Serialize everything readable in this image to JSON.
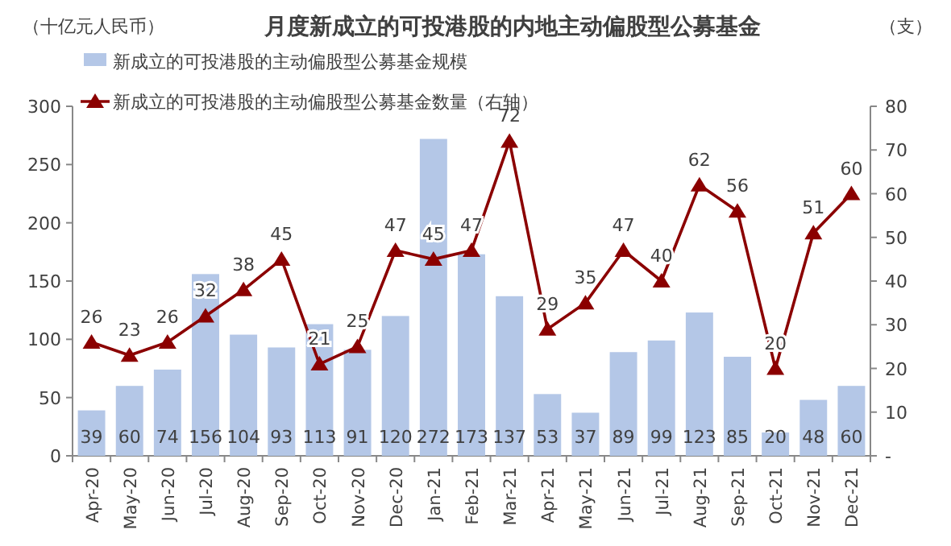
{
  "chart_data": {
    "type": "bar",
    "title": "月度新成立的可投港股的内地主动偏股型公募基金",
    "ylabel": "（十亿元人民币）",
    "y2label": "（支）",
    "categories": [
      "Apr-20",
      "May-20",
      "Jun-20",
      "Jul-20",
      "Aug-20",
      "Sep-20",
      "Oct-20",
      "Nov-20",
      "Dec-20",
      "Jan-21",
      "Feb-21",
      "Mar-21",
      "Apr-21",
      "May-21",
      "Jun-21",
      "Jul-21",
      "Aug-21",
      "Sep-21",
      "Oct-21",
      "Nov-21",
      "Dec-21"
    ],
    "series": [
      {
        "name": "新成立的可投港股的主动偏股型公募基金规模",
        "color": "#b4c7e7",
        "values": [
          39,
          60,
          74,
          156,
          104,
          93,
          113,
          91,
          120,
          272,
          173,
          137,
          53,
          37,
          89,
          99,
          123,
          85,
          20,
          48,
          60
        ]
      },
      {
        "name": "新成立的可投港股的主动偏股型公募基金数量（右轴）",
        "type": "line",
        "axis": "y2",
        "color": "#8b0000",
        "marker": "triangle",
        "values": [
          26,
          23,
          26,
          32,
          38,
          45,
          21,
          25,
          47,
          45,
          47,
          72,
          29,
          35,
          47,
          40,
          62,
          56,
          20,
          51,
          60
        ]
      }
    ],
    "ylim": [
      0,
      300
    ],
    "yticks": [
      0,
      50,
      100,
      150,
      200,
      250,
      300
    ],
    "y2lim": [
      0,
      80
    ],
    "y2ticks": [
      {
        "value": 0,
        "label": "-"
      },
      10,
      20,
      30,
      40,
      50,
      60,
      70,
      80
    ],
    "data_labels": true,
    "legend": "top left",
    "grid": false
  }
}
